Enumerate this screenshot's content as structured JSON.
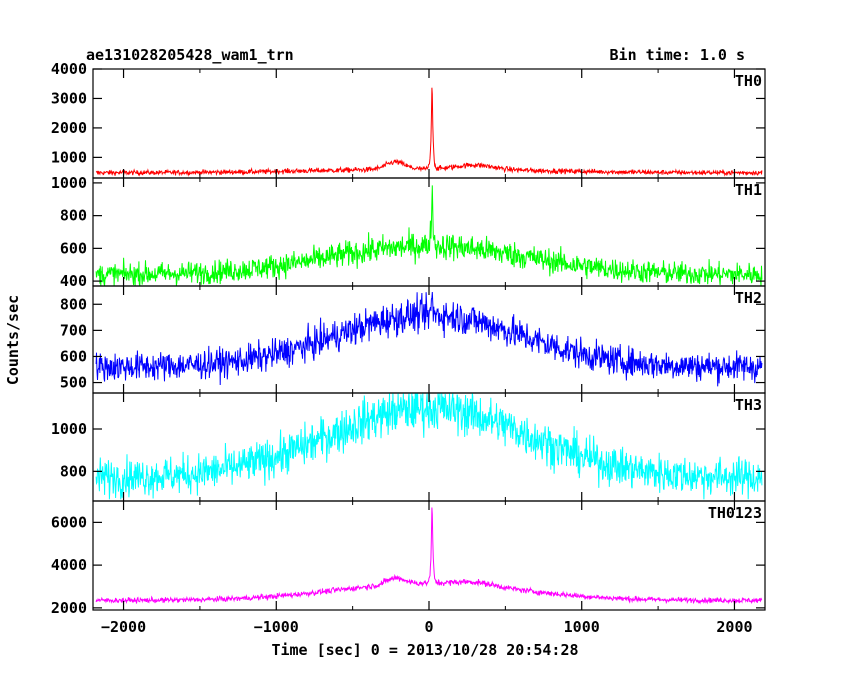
{
  "chart_data": {
    "type": "line",
    "title_left": "ae131028205428_wam1_trn",
    "title_right": "Bin time: 1.0 s",
    "xlabel": "Time [sec] 0 = 2013/10/28 20:54:28",
    "ylabel": "Counts/sec",
    "xlim": [
      -2200,
      2200
    ],
    "x_ticks": [
      -2000,
      -1000,
      0,
      1000,
      2000
    ],
    "x_tick_labels": [
      "−2000",
      "−1000",
      "0",
      "1000",
      "2000"
    ],
    "panels": [
      {
        "name": "TH0",
        "color": "#ff0000",
        "ylim": [
          300,
          4000
        ],
        "y_ticks": [
          1000,
          2000,
          3000,
          4000
        ],
        "y_tick_labels": [
          "1000",
          "2000",
          "3000",
          "4000"
        ],
        "baseline": 480,
        "noise": 40,
        "bump_amp": 120,
        "bump_width": 700,
        "shoulders": [
          {
            "x": -220,
            "amp": 250,
            "w": 60
          },
          {
            "x": 300,
            "amp": 150,
            "w": 120
          }
        ],
        "peak_x": 20,
        "peak_amp": 3500
      },
      {
        "name": "TH1",
        "color": "#00ff00",
        "ylim": [
          370,
          1030
        ],
        "y_ticks": [
          400,
          600,
          800,
          1000
        ],
        "y_tick_labels": [
          "400",
          "600",
          "800",
          "1000"
        ],
        "baseline": 440,
        "noise": 35,
        "bump_amp": 175,
        "bump_width": 650,
        "shoulders": [],
        "peak_x": 20,
        "peak_amp": 420
      },
      {
        "name": "TH2",
        "color": "#0000ff",
        "ylim": [
          460,
          870
        ],
        "y_ticks": [
          500,
          600,
          700,
          800
        ],
        "y_tick_labels": [
          "500",
          "600",
          "700",
          "800"
        ],
        "baseline": 560,
        "noise": 28,
        "bump_amp": 200,
        "bump_width": 600,
        "shoulders": [],
        "peak_x": 20,
        "peak_amp": 70
      },
      {
        "name": "TH3",
        "color": "#00ffff",
        "ylim": [
          660,
          1170
        ],
        "y_ticks": [
          800,
          1000
        ],
        "y_tick_labels": [
          "800",
          "1000"
        ],
        "baseline": 770,
        "noise": 45,
        "bump_amp": 330,
        "bump_width": 650,
        "shoulders": [],
        "peak_x": 20,
        "peak_amp": 0
      },
      {
        "name": "TH0123",
        "color": "#ff00ff",
        "ylim": [
          1900,
          7000
        ],
        "y_ticks": [
          2000,
          4000,
          6000
        ],
        "y_tick_labels": [
          "2000",
          "4000",
          "6000"
        ],
        "baseline": 2350,
        "noise": 60,
        "bump_amp": 800,
        "bump_width": 600,
        "shoulders": [
          {
            "x": -220,
            "amp": 300,
            "w": 60
          },
          {
            "x": 300,
            "amp": 150,
            "w": 120
          }
        ],
        "peak_x": 20,
        "peak_amp": 4300
      }
    ]
  }
}
